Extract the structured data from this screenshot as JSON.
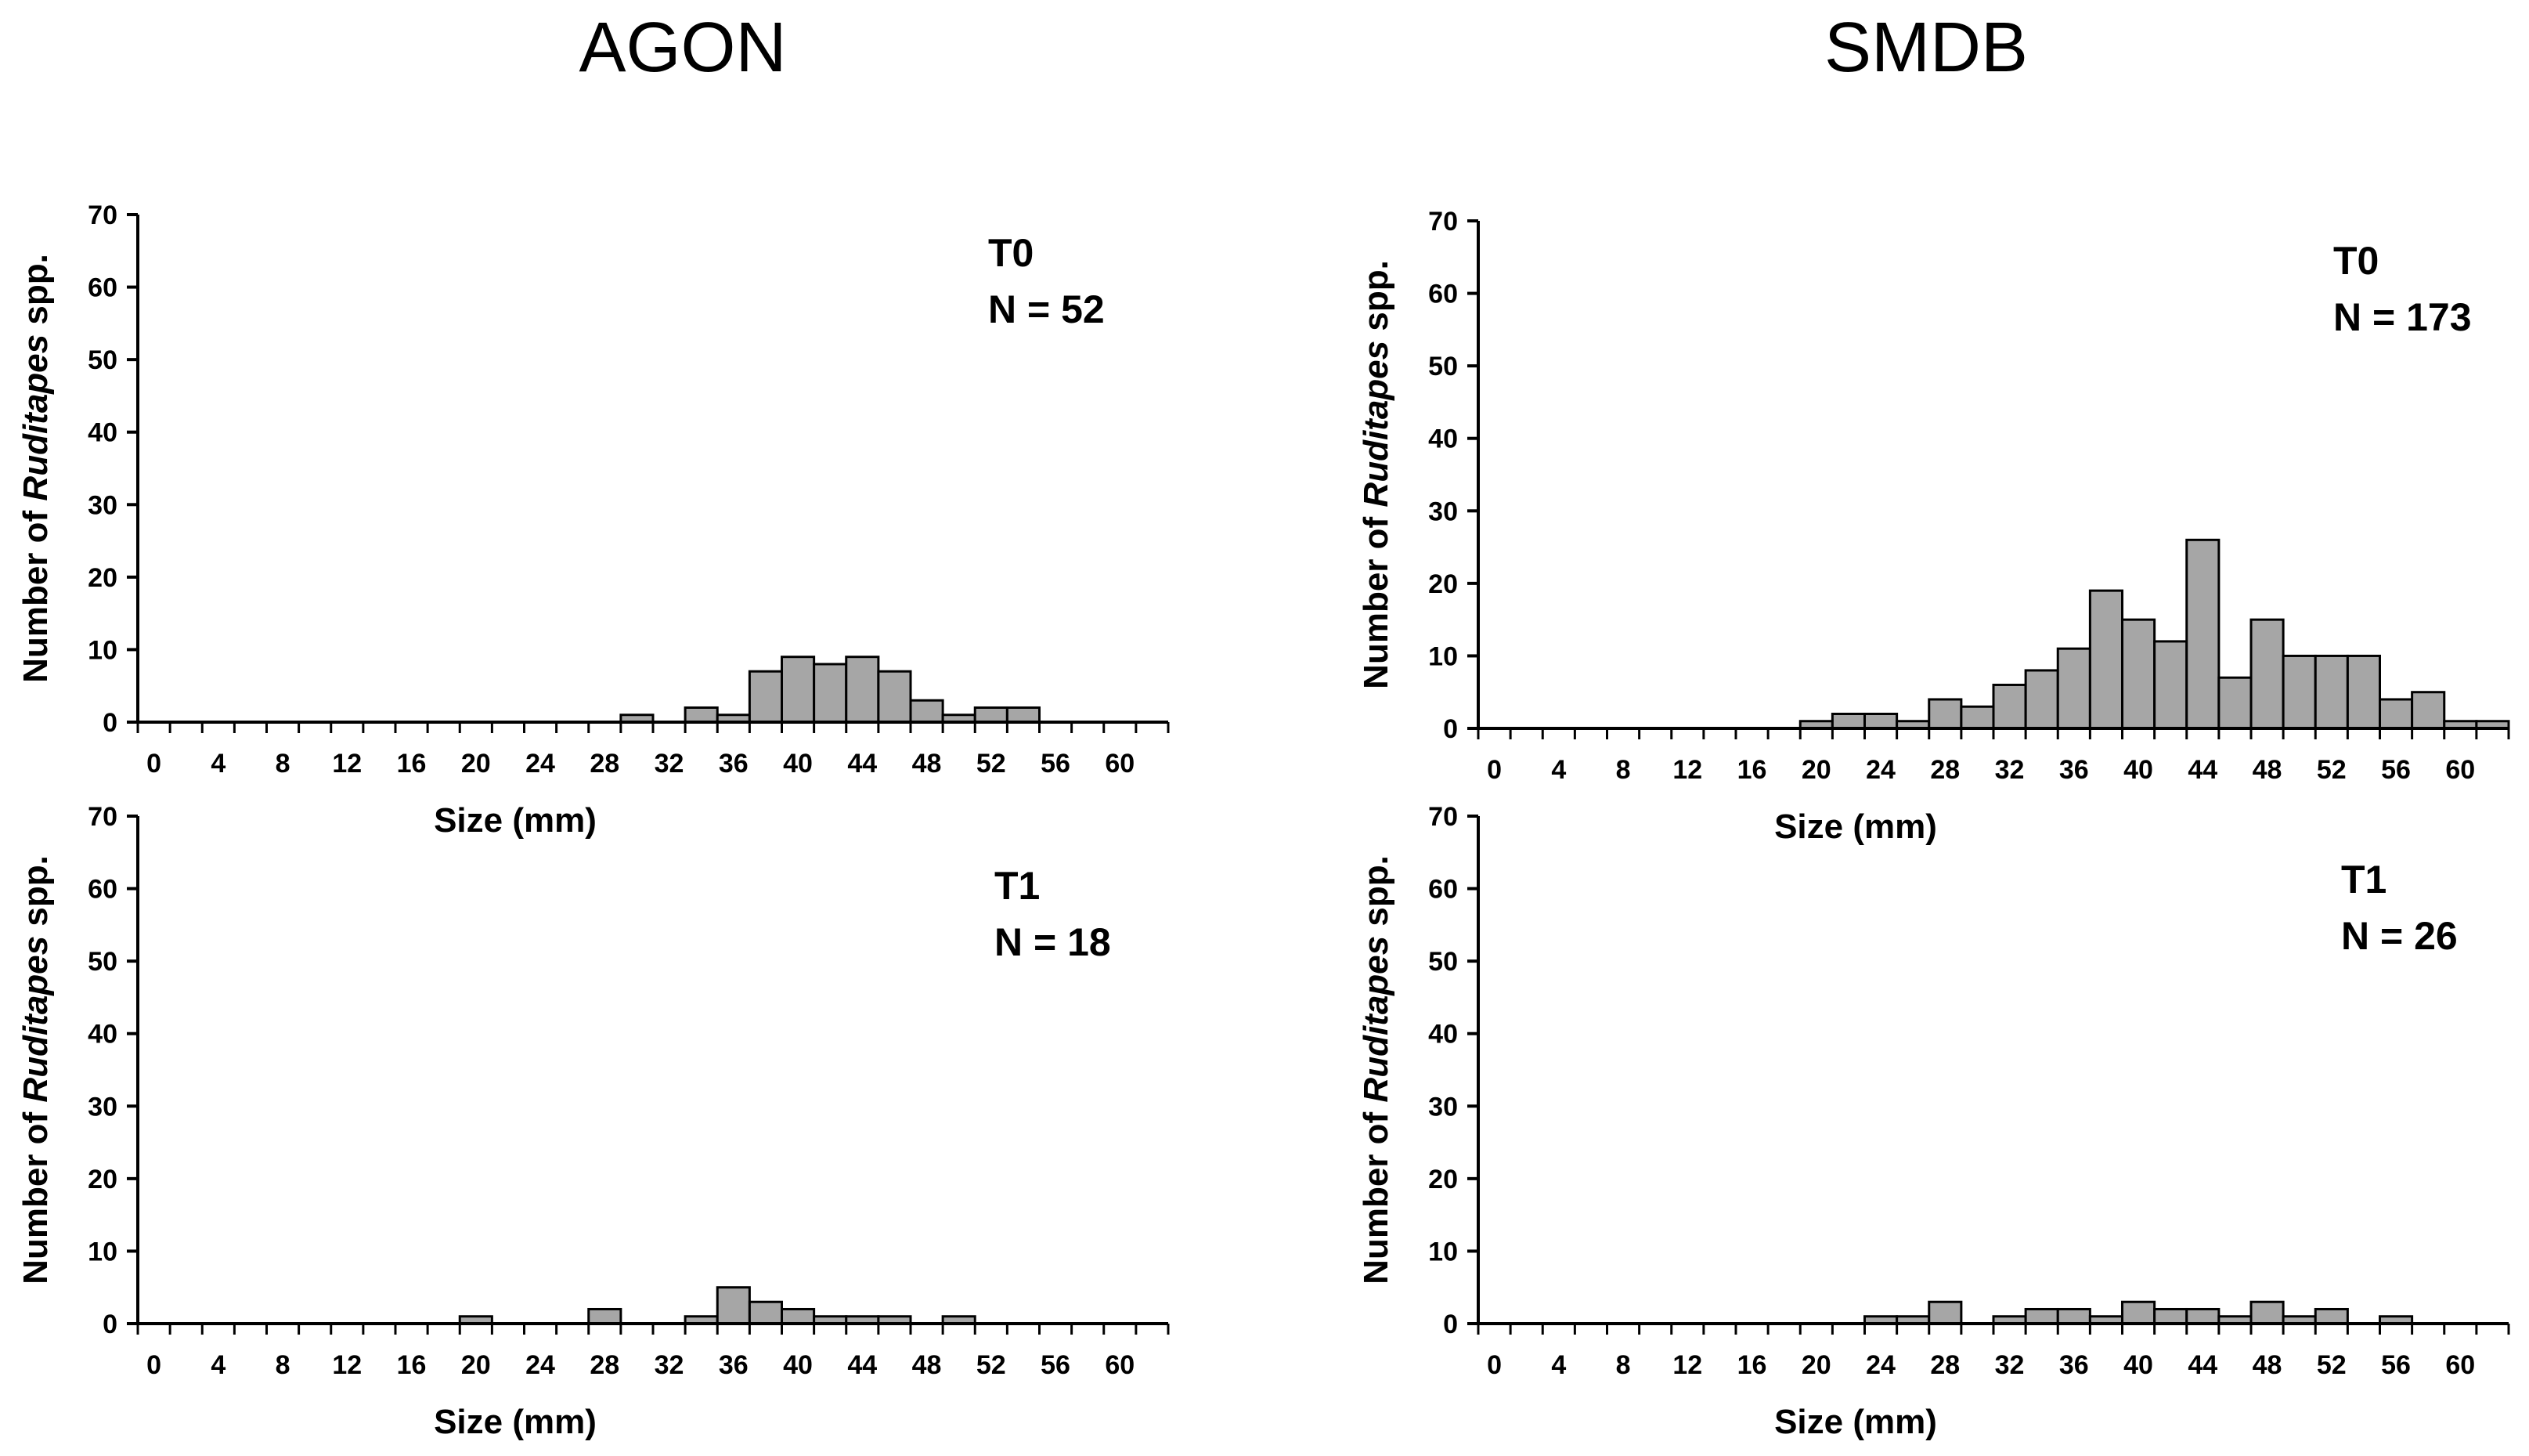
{
  "figure": {
    "columns": [
      "AGON",
      "SMDB"
    ]
  },
  "chart_data": [
    {
      "type": "bar",
      "column": "AGON",
      "panel": "T0",
      "annotation": [
        "T0",
        "N = 52"
      ],
      "xlabel": "Size (mm)",
      "ylabel": [
        "Number of ",
        "Ruditapes",
        " spp."
      ],
      "ylim": [
        0,
        70
      ],
      "yticks": [
        0,
        10,
        20,
        30,
        40,
        50,
        60,
        70
      ],
      "xlim": [
        -1,
        63
      ],
      "xticks": [
        0,
        4,
        8,
        12,
        16,
        20,
        24,
        28,
        32,
        36,
        40,
        44,
        48,
        52,
        56,
        60
      ],
      "bin_width": 2,
      "bins": [
        {
          "x": 30,
          "v": 1
        },
        {
          "x": 34,
          "v": 2
        },
        {
          "x": 36,
          "v": 1
        },
        {
          "x": 38,
          "v": 7
        },
        {
          "x": 40,
          "v": 9
        },
        {
          "x": 42,
          "v": 8
        },
        {
          "x": 44,
          "v": 9
        },
        {
          "x": 46,
          "v": 7
        },
        {
          "x": 48,
          "v": 3
        },
        {
          "x": 50,
          "v": 1
        },
        {
          "x": 52,
          "v": 2
        },
        {
          "x": 54,
          "v": 2
        }
      ]
    },
    {
      "type": "bar",
      "column": "SMDB",
      "panel": "T0",
      "annotation": [
        "T0",
        "N = 173"
      ],
      "xlabel": "Size (mm)",
      "ylabel": [
        "Number of ",
        "Ruditapes",
        " spp."
      ],
      "ylim": [
        0,
        70
      ],
      "yticks": [
        0,
        10,
        20,
        30,
        40,
        50,
        60,
        70
      ],
      "xlim": [
        -1,
        63
      ],
      "xticks": [
        0,
        4,
        8,
        12,
        16,
        20,
        24,
        28,
        32,
        36,
        40,
        44,
        48,
        52,
        56,
        60
      ],
      "bin_width": 2,
      "bins": [
        {
          "x": 20,
          "v": 1
        },
        {
          "x": 22,
          "v": 2
        },
        {
          "x": 24,
          "v": 2
        },
        {
          "x": 26,
          "v": 1
        },
        {
          "x": 28,
          "v": 4
        },
        {
          "x": 30,
          "v": 3
        },
        {
          "x": 32,
          "v": 6
        },
        {
          "x": 34,
          "v": 8
        },
        {
          "x": 36,
          "v": 11
        },
        {
          "x": 38,
          "v": 19
        },
        {
          "x": 40,
          "v": 15
        },
        {
          "x": 42,
          "v": 12
        },
        {
          "x": 44,
          "v": 26
        },
        {
          "x": 46,
          "v": 7
        },
        {
          "x": 48,
          "v": 15
        },
        {
          "x": 50,
          "v": 10
        },
        {
          "x": 52,
          "v": 10
        },
        {
          "x": 54,
          "v": 10
        },
        {
          "x": 56,
          "v": 4
        },
        {
          "x": 58,
          "v": 5
        },
        {
          "x": 60,
          "v": 1
        },
        {
          "x": 62,
          "v": 1
        }
      ]
    },
    {
      "type": "bar",
      "column": "AGON",
      "panel": "T1",
      "annotation": [
        "T1",
        "N = 18"
      ],
      "xlabel": "Size (mm)",
      "ylabel": [
        "Number of ",
        "Ruditapes",
        " spp."
      ],
      "ylim": [
        0,
        70
      ],
      "yticks": [
        0,
        10,
        20,
        30,
        40,
        50,
        60,
        70
      ],
      "xlim": [
        -1,
        63
      ],
      "xticks": [
        0,
        4,
        8,
        12,
        16,
        20,
        24,
        28,
        32,
        36,
        40,
        44,
        48,
        52,
        56,
        60
      ],
      "bin_width": 2,
      "bins": [
        {
          "x": 20,
          "v": 1
        },
        {
          "x": 28,
          "v": 2
        },
        {
          "x": 34,
          "v": 1
        },
        {
          "x": 36,
          "v": 5
        },
        {
          "x": 38,
          "v": 3
        },
        {
          "x": 40,
          "v": 2
        },
        {
          "x": 42,
          "v": 1
        },
        {
          "x": 44,
          "v": 1
        },
        {
          "x": 46,
          "v": 1
        },
        {
          "x": 50,
          "v": 1
        }
      ]
    },
    {
      "type": "bar",
      "column": "SMDB",
      "panel": "T1",
      "annotation": [
        "T1",
        "N = 26"
      ],
      "xlabel": "Size (mm)",
      "ylabel": [
        "Number of ",
        "Ruditapes",
        " spp."
      ],
      "ylim": [
        0,
        70
      ],
      "yticks": [
        0,
        10,
        20,
        30,
        40,
        50,
        60,
        70
      ],
      "xlim": [
        -1,
        63
      ],
      "xticks": [
        0,
        4,
        8,
        12,
        16,
        20,
        24,
        28,
        32,
        36,
        40,
        44,
        48,
        52,
        56,
        60
      ],
      "bin_width": 2,
      "bins": [
        {
          "x": 24,
          "v": 1
        },
        {
          "x": 26,
          "v": 1
        },
        {
          "x": 28,
          "v": 3
        },
        {
          "x": 32,
          "v": 1
        },
        {
          "x": 34,
          "v": 2
        },
        {
          "x": 36,
          "v": 2
        },
        {
          "x": 38,
          "v": 1
        },
        {
          "x": 40,
          "v": 3
        },
        {
          "x": 42,
          "v": 2
        },
        {
          "x": 44,
          "v": 2
        },
        {
          "x": 46,
          "v": 1
        },
        {
          "x": 48,
          "v": 3
        },
        {
          "x": 50,
          "v": 1
        },
        {
          "x": 52,
          "v": 2
        },
        {
          "x": 56,
          "v": 1
        }
      ]
    }
  ]
}
